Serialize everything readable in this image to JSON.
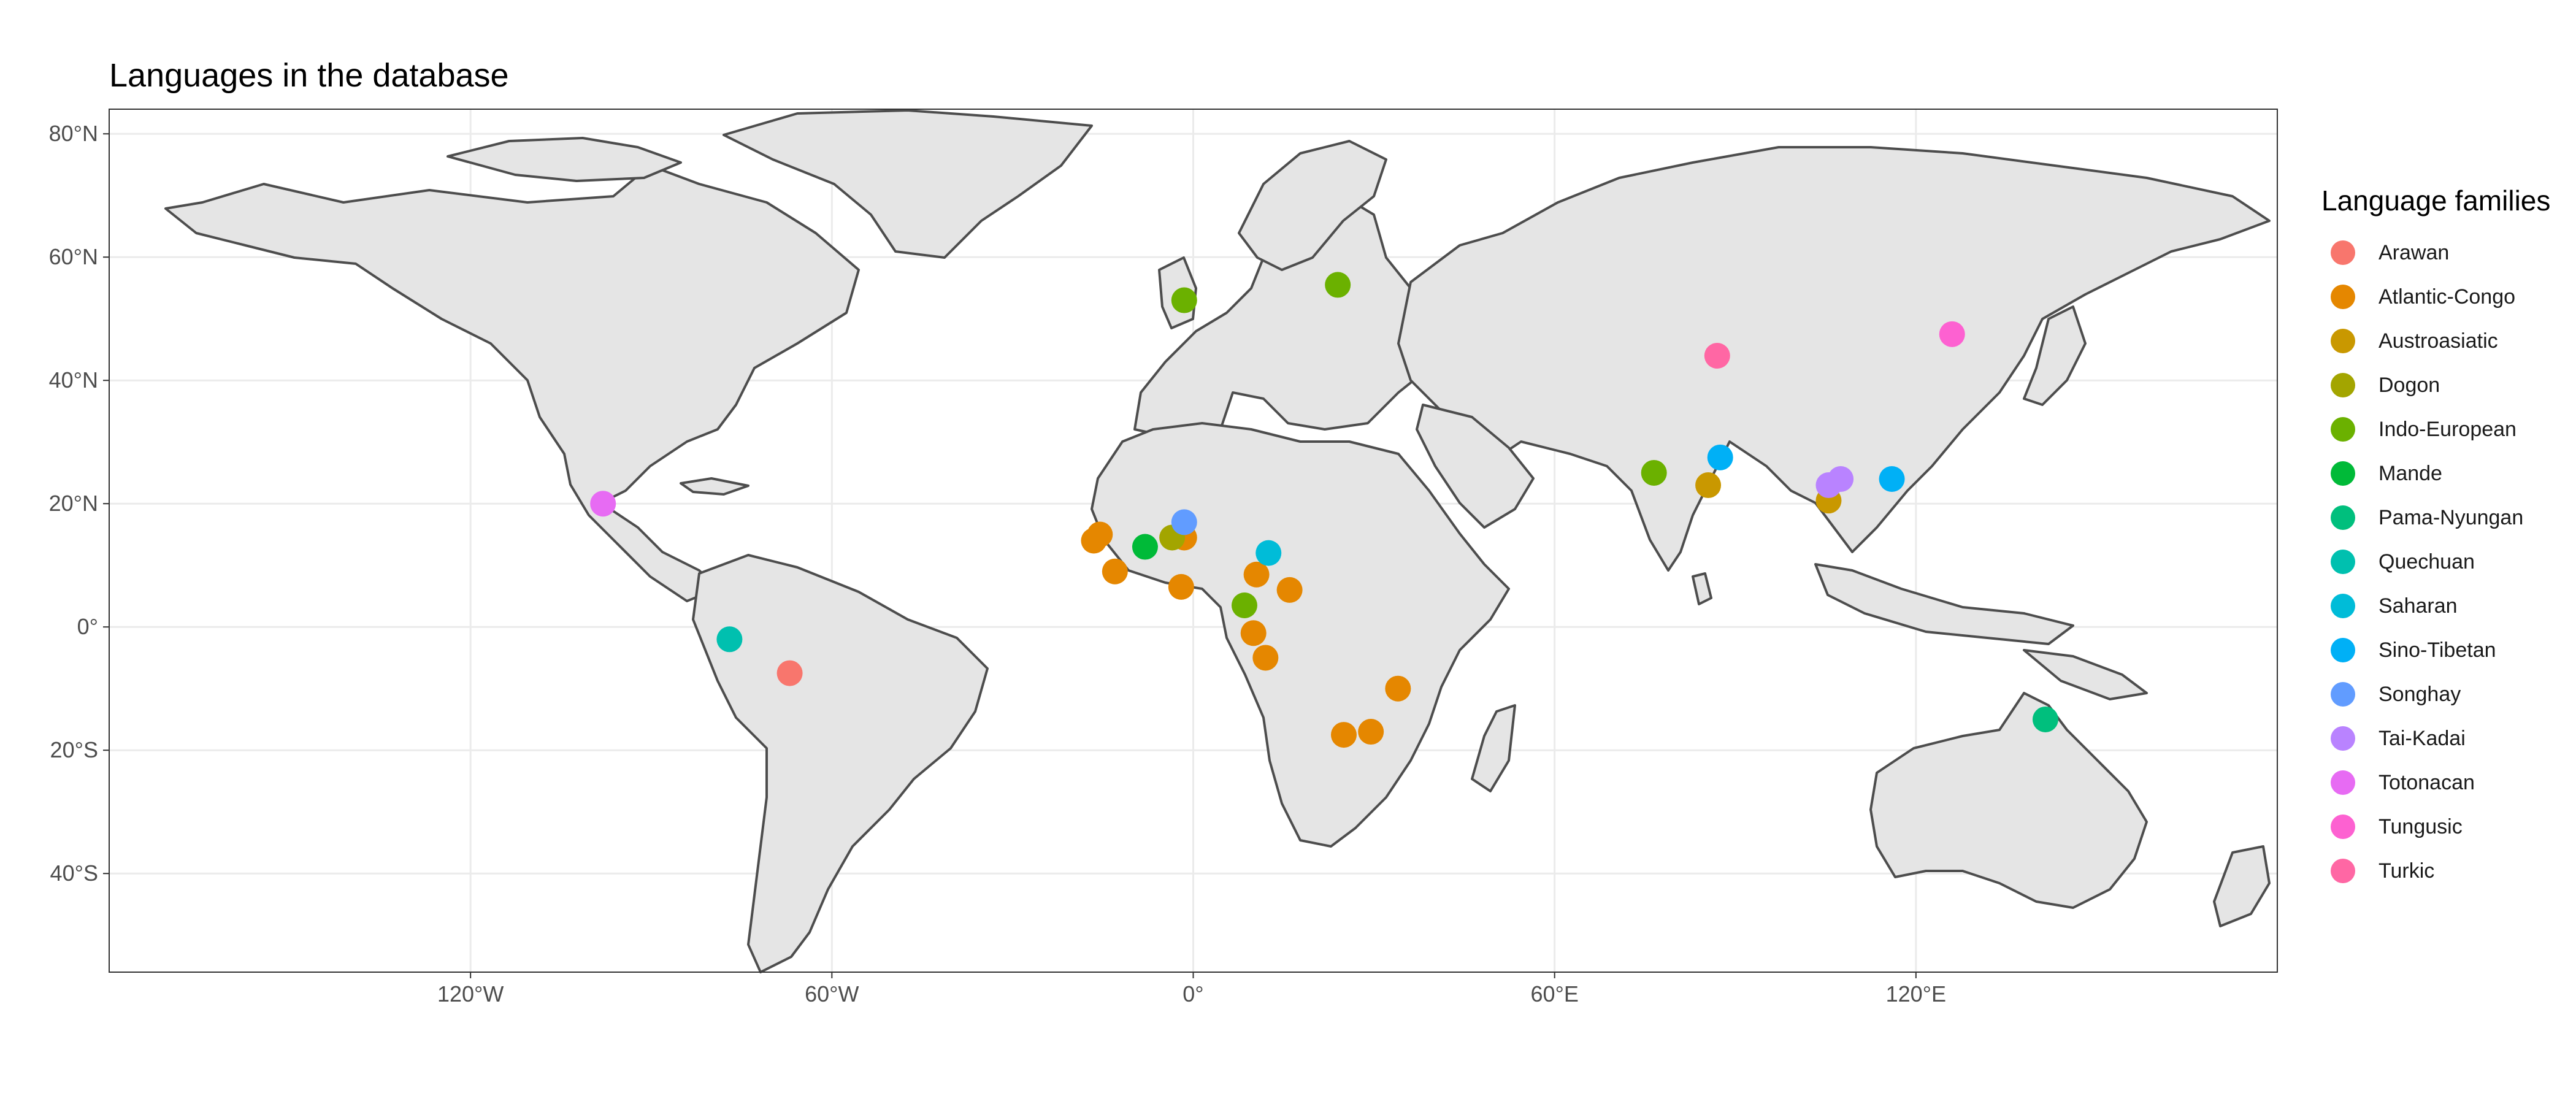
{
  "map": {
    "title": "Languages in the database",
    "x_ticks": [
      {
        "lon": -120,
        "label": "120°W"
      },
      {
        "lon": -60,
        "label": "60°W"
      },
      {
        "lon": 0,
        "label": "0°"
      },
      {
        "lon": 60,
        "label": "60°E"
      },
      {
        "lon": 120,
        "label": "120°E"
      }
    ],
    "y_ticks": [
      {
        "lat": 80,
        "label": "80°N"
      },
      {
        "lat": 60,
        "label": "60°N"
      },
      {
        "lat": 40,
        "label": "40°N"
      },
      {
        "lat": 20,
        "label": "20°N"
      },
      {
        "lat": 0,
        "label": "0°"
      },
      {
        "lat": -20,
        "label": "20°S"
      },
      {
        "lat": -40,
        "label": "40°S"
      }
    ],
    "extent": {
      "lon": [
        -180,
        180
      ],
      "lat": [
        -56,
        84
      ]
    },
    "land_color": "#e5e5e5",
    "border_color": "#4d4d4d",
    "grid_color": "#ebebeb"
  },
  "legend": {
    "title": "Language families",
    "position": "right",
    "items": [
      {
        "label": "Arawan",
        "color": "#F8766D"
      },
      {
        "label": "Atlantic-Congo",
        "color": "#E58700"
      },
      {
        "label": "Austroasiatic",
        "color": "#C99800"
      },
      {
        "label": "Dogon",
        "color": "#A3A500"
      },
      {
        "label": "Indo-European",
        "color": "#6BB100"
      },
      {
        "label": "Mande",
        "color": "#00BA38"
      },
      {
        "label": "Pama-Nyungan",
        "color": "#00BF7D"
      },
      {
        "label": "Quechuan",
        "color": "#00C0AF"
      },
      {
        "label": "Saharan",
        "color": "#00BCD8"
      },
      {
        "label": "Sino-Tibetan",
        "color": "#00B0F6"
      },
      {
        "label": "Songhay",
        "color": "#619CFF"
      },
      {
        "label": "Tai-Kadai",
        "color": "#B983FF"
      },
      {
        "label": "Totonacan",
        "color": "#E76BF3"
      },
      {
        "label": "Tungusic",
        "color": "#FD61D1"
      },
      {
        "label": "Turkic",
        "color": "#FF67A4"
      }
    ]
  },
  "chart_data": {
    "type": "scatter",
    "title": "Languages in the database",
    "xlabel": "",
    "ylabel": "",
    "xlim": [
      -180,
      180
    ],
    "ylim": [
      -56,
      84
    ],
    "grid": true,
    "legend_position": "right",
    "series": [
      {
        "name": "Arawan",
        "points": [
          {
            "lon": -67,
            "lat": -7.5
          }
        ]
      },
      {
        "name": "Atlantic-Congo",
        "points": [
          {
            "lon": -16.5,
            "lat": 14
          },
          {
            "lon": -15.5,
            "lat": 15
          },
          {
            "lon": -13,
            "lat": 9
          },
          {
            "lon": -1.5,
            "lat": 14.5
          },
          {
            "lon": -2,
            "lat": 6.5
          },
          {
            "lon": 10.5,
            "lat": 8.5
          },
          {
            "lon": 16,
            "lat": 6
          },
          {
            "lon": 10,
            "lat": -1
          },
          {
            "lon": 12,
            "lat": -5
          },
          {
            "lon": 25,
            "lat": -17.5
          },
          {
            "lon": 29.5,
            "lat": -17
          },
          {
            "lon": 34,
            "lat": -10
          }
        ]
      },
      {
        "name": "Austroasiatic",
        "points": [
          {
            "lon": 85.5,
            "lat": 23
          },
          {
            "lon": 105.5,
            "lat": 20.5
          }
        ]
      },
      {
        "name": "Dogon",
        "points": [
          {
            "lon": -3.5,
            "lat": 14.5
          }
        ]
      },
      {
        "name": "Indo-European",
        "points": [
          {
            "lon": -1.5,
            "lat": 53
          },
          {
            "lon": 24,
            "lat": 55.5
          },
          {
            "lon": 76.5,
            "lat": 25
          },
          {
            "lon": 8.5,
            "lat": 3.5
          }
        ]
      },
      {
        "name": "Mande",
        "points": [
          {
            "lon": -8,
            "lat": 13
          }
        ]
      },
      {
        "name": "Pama-Nyungan",
        "points": [
          {
            "lon": 141.5,
            "lat": -15
          }
        ]
      },
      {
        "name": "Quechuan",
        "points": [
          {
            "lon": -77,
            "lat": -2
          }
        ]
      },
      {
        "name": "Saharan",
        "points": [
          {
            "lon": 12.5,
            "lat": 12
          }
        ]
      },
      {
        "name": "Sino-Tibetan",
        "points": [
          {
            "lon": 87.5,
            "lat": 27.5
          },
          {
            "lon": 116,
            "lat": 24
          }
        ]
      },
      {
        "name": "Songhay",
        "points": [
          {
            "lon": -1.5,
            "lat": 17
          }
        ]
      },
      {
        "name": "Tai-Kadai",
        "points": [
          {
            "lon": 105.5,
            "lat": 23
          },
          {
            "lon": 107.5,
            "lat": 24
          }
        ]
      },
      {
        "name": "Totonacan",
        "points": [
          {
            "lon": -98,
            "lat": 20
          }
        ]
      },
      {
        "name": "Tungusic",
        "points": [
          {
            "lon": 126,
            "lat": 47.5
          }
        ]
      },
      {
        "name": "Turkic",
        "points": [
          {
            "lon": 87,
            "lat": 44
          }
        ]
      }
    ]
  }
}
